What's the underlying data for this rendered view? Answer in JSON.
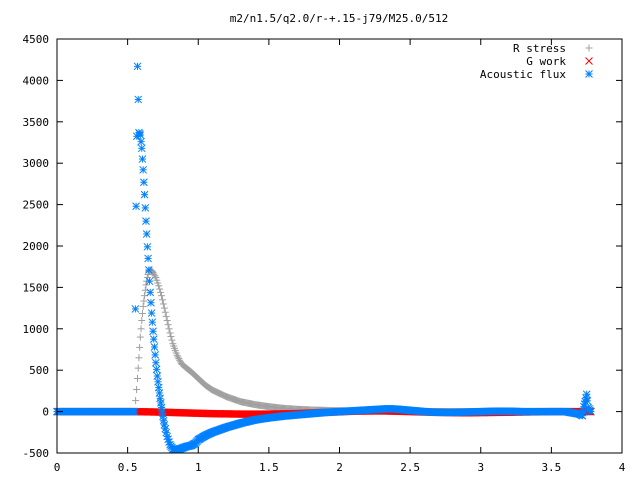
{
  "chart_data": {
    "type": "scatter",
    "title": "m2/n1.5/q2.0/r-+.15-j79/M25.0/512",
    "xlabel": "",
    "ylabel": "",
    "xlim": [
      0,
      4
    ],
    "ylim": [
      -500,
      4500
    ],
    "x_ticks": [
      "0",
      "0.5",
      "1",
      "1.5",
      "2",
      "2.5",
      "3",
      "3.5",
      "4"
    ],
    "y_ticks": [
      "-500",
      "0",
      "500",
      "1000",
      "1500",
      "2000",
      "2500",
      "3000",
      "3500",
      "4000",
      "4500"
    ],
    "grid": false,
    "legend_position": "top-right",
    "series": [
      {
        "name": "R stress",
        "marker": "plus",
        "color": "#a0a0a0",
        "points": [
          [
            0.0,
            0
          ],
          [
            0.2,
            0
          ],
          [
            0.4,
            0
          ],
          [
            0.55,
            0
          ],
          [
            0.57,
            400
          ],
          [
            0.58,
            650
          ],
          [
            0.59,
            900
          ],
          [
            0.6,
            1100
          ],
          [
            0.61,
            1270
          ],
          [
            0.62,
            1400
          ],
          [
            0.63,
            1530
          ],
          [
            0.64,
            1620
          ],
          [
            0.65,
            1690
          ],
          [
            0.66,
            1710
          ],
          [
            0.67,
            1700
          ],
          [
            0.68,
            1680
          ],
          [
            0.7,
            1620
          ],
          [
            0.72,
            1520
          ],
          [
            0.74,
            1400
          ],
          [
            0.76,
            1250
          ],
          [
            0.78,
            1100
          ],
          [
            0.8,
            950
          ],
          [
            0.82,
            820
          ],
          [
            0.85,
            680
          ],
          [
            0.88,
            580
          ],
          [
            0.92,
            520
          ],
          [
            0.95,
            480
          ],
          [
            1.0,
            400
          ],
          [
            1.05,
            320
          ],
          [
            1.1,
            260
          ],
          [
            1.2,
            180
          ],
          [
            1.3,
            120
          ],
          [
            1.4,
            85
          ],
          [
            1.5,
            60
          ],
          [
            1.6,
            40
          ],
          [
            1.7,
            28
          ],
          [
            1.8,
            20
          ],
          [
            2.0,
            10
          ],
          [
            2.2,
            5
          ],
          [
            2.5,
            2
          ],
          [
            3.0,
            0
          ],
          [
            3.5,
            0
          ],
          [
            3.75,
            0
          ]
        ]
      },
      {
        "name": "G work",
        "marker": "cross",
        "color": "#ff0000",
        "points": [
          [
            0.0,
            0
          ],
          [
            0.3,
            0
          ],
          [
            0.55,
            0
          ],
          [
            0.7,
            -5
          ],
          [
            0.9,
            -15
          ],
          [
            1.1,
            -25
          ],
          [
            1.3,
            -30
          ],
          [
            1.5,
            -30
          ],
          [
            1.7,
            -25
          ],
          [
            1.9,
            -10
          ],
          [
            2.1,
            5
          ],
          [
            2.3,
            10
          ],
          [
            2.5,
            0
          ],
          [
            2.7,
            -10
          ],
          [
            2.9,
            -15
          ],
          [
            3.1,
            -10
          ],
          [
            3.3,
            -5
          ],
          [
            3.5,
            0
          ],
          [
            3.7,
            0
          ],
          [
            3.78,
            0
          ]
        ]
      },
      {
        "name": "Acoustic flux",
        "marker": "star",
        "color": "#0080ff",
        "points": [
          [
            0.0,
            0
          ],
          [
            0.1,
            0
          ],
          [
            0.2,
            0
          ],
          [
            0.3,
            0
          ],
          [
            0.4,
            0
          ],
          [
            0.5,
            0
          ],
          [
            0.55,
            0
          ],
          [
            0.56,
            2480
          ],
          [
            0.57,
            4170
          ],
          [
            0.58,
            3370
          ],
          [
            0.59,
            3340
          ],
          [
            0.6,
            3180
          ],
          [
            0.61,
            2920
          ],
          [
            0.62,
            2620
          ],
          [
            0.63,
            2300
          ],
          [
            0.64,
            1990
          ],
          [
            0.65,
            1710
          ],
          [
            0.66,
            1440
          ],
          [
            0.67,
            1190
          ],
          [
            0.68,
            970
          ],
          [
            0.69,
            780
          ],
          [
            0.7,
            590
          ],
          [
            0.71,
            430
          ],
          [
            0.72,
            290
          ],
          [
            0.73,
            160
          ],
          [
            0.74,
            50
          ],
          [
            0.75,
            -60
          ],
          [
            0.76,
            -160
          ],
          [
            0.78,
            -300
          ],
          [
            0.8,
            -400
          ],
          [
            0.82,
            -450
          ],
          [
            0.85,
            -460
          ],
          [
            0.88,
            -445
          ],
          [
            0.92,
            -420
          ],
          [
            0.95,
            -410
          ],
          [
            0.98,
            -380
          ],
          [
            1.0,
            -340
          ],
          [
            1.05,
            -290
          ],
          [
            1.1,
            -250
          ],
          [
            1.2,
            -190
          ],
          [
            1.3,
            -140
          ],
          [
            1.4,
            -100
          ],
          [
            1.5,
            -75
          ],
          [
            1.6,
            -55
          ],
          [
            1.7,
            -40
          ],
          [
            1.8,
            -25
          ],
          [
            1.9,
            -10
          ],
          [
            2.0,
            0
          ],
          [
            2.1,
            10
          ],
          [
            2.2,
            20
          ],
          [
            2.3,
            30
          ],
          [
            2.35,
            35
          ],
          [
            2.4,
            30
          ],
          [
            2.5,
            15
          ],
          [
            2.6,
            0
          ],
          [
            2.7,
            -10
          ],
          [
            2.8,
            -10
          ],
          [
            2.9,
            -5
          ],
          [
            3.0,
            0
          ],
          [
            3.1,
            5
          ],
          [
            3.2,
            5
          ],
          [
            3.3,
            0
          ],
          [
            3.4,
            0
          ],
          [
            3.5,
            0
          ],
          [
            3.6,
            0
          ],
          [
            3.7,
            -30
          ],
          [
            3.72,
            -50
          ],
          [
            3.73,
            60
          ],
          [
            3.74,
            120
          ],
          [
            3.75,
            210
          ],
          [
            3.76,
            50
          ],
          [
            3.78,
            0
          ]
        ]
      }
    ]
  }
}
